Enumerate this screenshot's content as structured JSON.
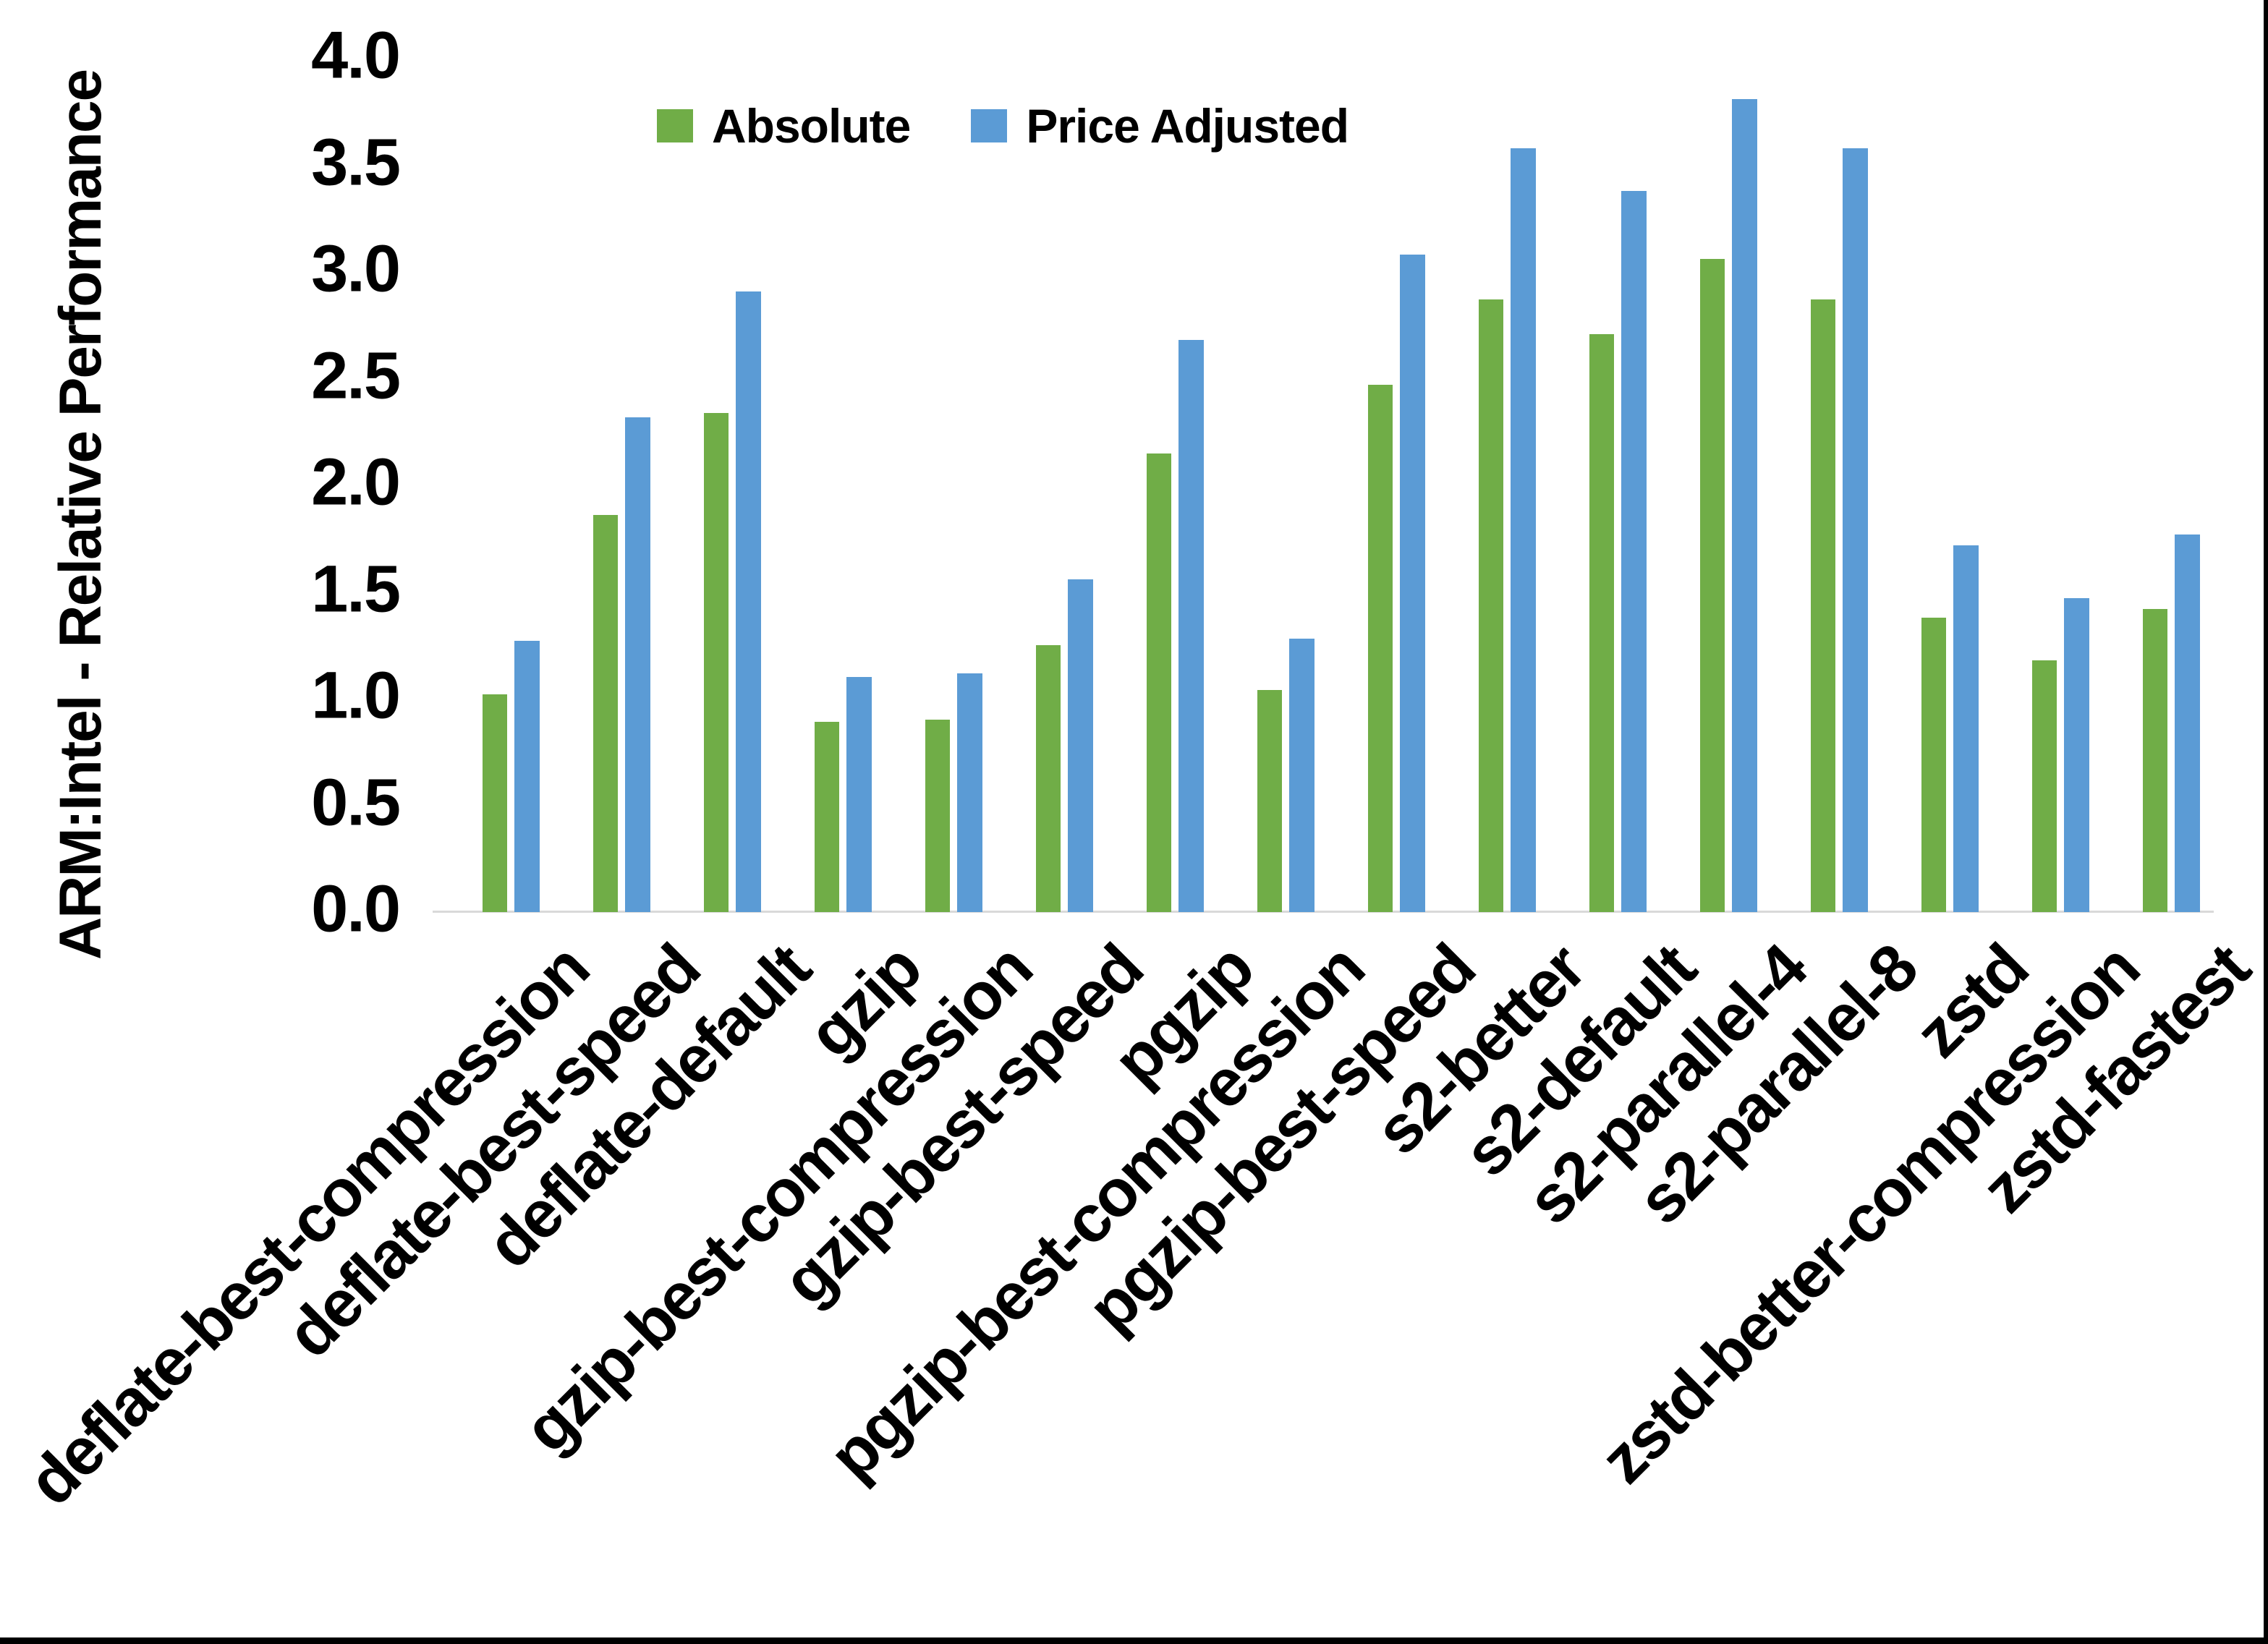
{
  "chart_data": {
    "type": "bar",
    "title": "",
    "ylabel": "ARM:Intel - Relative Performance",
    "xlabel": "",
    "ylim": [
      0,
      4
    ],
    "ytick_step": 0.5,
    "yticks": [
      "4.0",
      "3.5",
      "3.0",
      "2.5",
      "2.0",
      "1.5",
      "1.0",
      "0.5",
      "0.0"
    ],
    "grid": false,
    "legend_position": "top-center",
    "axis_line_color": "#D9D9D9",
    "categories": [
      "deflate-best-compression",
      "deflate-best-speed",
      "deflate-default",
      "gzip",
      "gzip-best-compression",
      "gzip-best-speed",
      "pgzip",
      "pgzip-best-compression",
      "pgzip-best-speed",
      "s2-better",
      "s2-default",
      "s2-parallel-4",
      "s2-parallel-8",
      "zstd",
      "zstd-better-compression",
      "zstd-fastest"
    ],
    "series": [
      {
        "name": "Absolute",
        "color": "#70AD47",
        "values": [
          1.02,
          1.86,
          2.34,
          0.89,
          0.9,
          1.25,
          2.15,
          1.04,
          2.47,
          2.87,
          2.71,
          3.06,
          2.87,
          1.38,
          1.18,
          1.42
        ]
      },
      {
        "name": "Price Adjusted",
        "color": "#5B9BD5",
        "values": [
          1.27,
          2.32,
          2.91,
          1.1,
          1.12,
          1.56,
          2.68,
          1.28,
          3.08,
          3.58,
          3.38,
          3.81,
          3.58,
          1.72,
          1.47,
          1.77
        ]
      }
    ]
  },
  "legend": {
    "items": [
      {
        "label": "Absolute",
        "color": "#70AD47"
      },
      {
        "label": "Price Adjusted",
        "color": "#5B9BD5"
      }
    ]
  },
  "frame": {
    "border_color": "#000000"
  }
}
